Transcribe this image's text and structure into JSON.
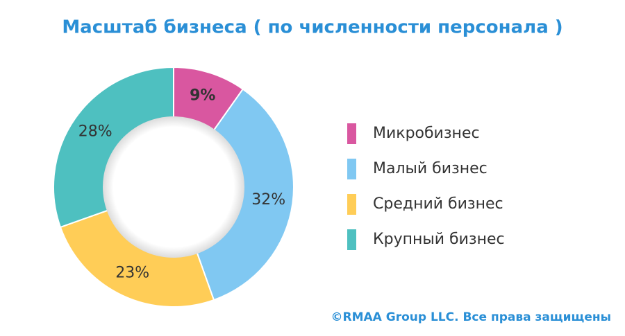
{
  "chart_data": {
    "type": "donut",
    "title": "Масштаб бизнеса ( по численности персонала )",
    "categories": [
      "Микробизнес",
      "Малый бизнес",
      "Средний бизнес",
      "Крупный бизнес"
    ],
    "values": [
      9,
      32,
      23,
      28
    ],
    "value_labels": [
      "9%",
      "32%",
      "23%",
      "28%"
    ],
    "colors": [
      "#d957a0",
      "#80c8f2",
      "#ffcd57",
      "#4ec0c0"
    ],
    "legend": "right",
    "footer": "©RMAA Group LLC. Все права защищены"
  }
}
